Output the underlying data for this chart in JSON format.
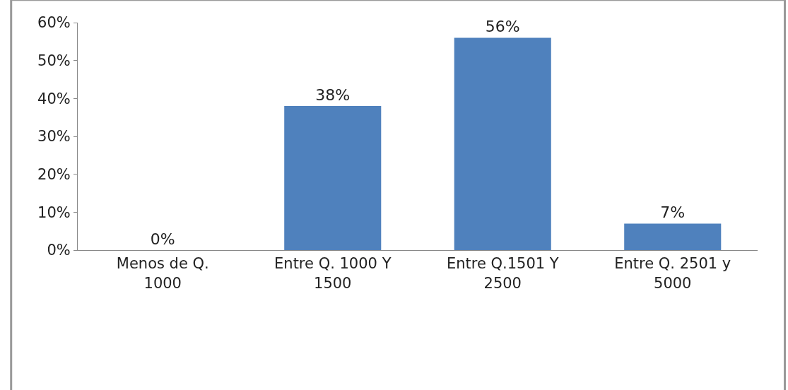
{
  "chart_data": {
    "type": "bar",
    "categories": [
      "Menos de Q. 1000",
      "Entre Q. 1000 Y 1500",
      "Entre Q.1501 Y 2500",
      "Entre Q. 2501 y 5000"
    ],
    "values": [
      0,
      38,
      56,
      7
    ],
    "value_labels": [
      "0%",
      "38%",
      "56%",
      "7%"
    ],
    "color": "#4f81bd",
    "ylim": [
      0,
      60
    ],
    "yticks": [
      {
        "value": 0,
        "label": "0%"
      },
      {
        "value": 10,
        "label": "10%"
      },
      {
        "value": 20,
        "label": "20%"
      },
      {
        "value": 30,
        "label": "30%"
      },
      {
        "value": 40,
        "label": "40%"
      },
      {
        "value": 50,
        "label": "50%"
      },
      {
        "value": 60,
        "label": "60%"
      }
    ],
    "legend": false
  }
}
